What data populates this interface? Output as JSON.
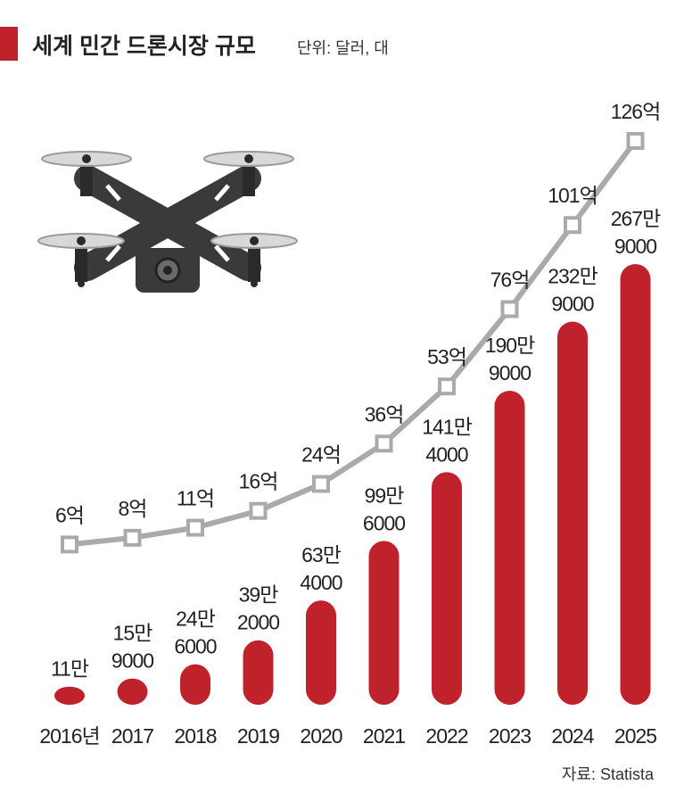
{
  "header": {
    "title": "세계 민간 드론시장 규모",
    "unit": "단위: 달러, 대"
  },
  "footer": {
    "source": "자료: Statista"
  },
  "colors": {
    "bar": "#c0222c",
    "line": "#aaaaaa",
    "accent": "#c0222c",
    "text": "#222222"
  },
  "chart_data": {
    "type": "bar",
    "categories": [
      "2016년",
      "2017",
      "2018",
      "2019",
      "2020",
      "2021",
      "2022",
      "2023",
      "2024",
      "2025"
    ],
    "series": [
      {
        "type": "line",
        "values": [
          6,
          8,
          11,
          16,
          24,
          36,
          53,
          76,
          101,
          126
        ],
        "labels": [
          "6억",
          "8억",
          "11억",
          "16억",
          "24억",
          "36억",
          "53억",
          "76억",
          "101억",
          "126억"
        ]
      },
      {
        "type": "bar",
        "values": [
          110000,
          159000,
          246000,
          392000,
          634000,
          996000,
          1414000,
          1909000,
          2329000,
          2679000
        ],
        "labels": [
          [
            "11만"
          ],
          [
            "15만",
            "9000"
          ],
          [
            "24만",
            "6000"
          ],
          [
            "39만",
            "2000"
          ],
          [
            "63만",
            "4000"
          ],
          [
            "99만",
            "6000"
          ],
          [
            "141만",
            "4000"
          ],
          [
            "190만",
            "9000"
          ],
          [
            "232만",
            "9000"
          ],
          [
            "267만",
            "9000"
          ]
        ]
      }
    ]
  }
}
